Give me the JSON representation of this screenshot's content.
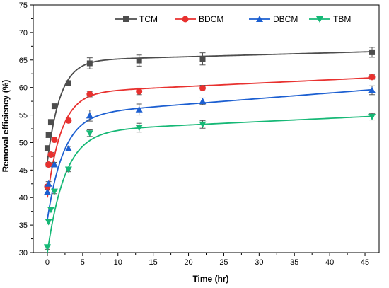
{
  "chart_data": {
    "type": "scatter",
    "xlabel": "Time (hr)",
    "ylabel": "Removal efficiency (%)",
    "xlim": [
      -2,
      47
    ],
    "ylim": [
      30,
      75
    ],
    "xticks": [
      "0",
      "5",
      "10",
      "15",
      "20",
      "25",
      "30",
      "35",
      "40",
      "45"
    ],
    "yticks": [
      "30",
      "35",
      "40",
      "45",
      "50",
      "55",
      "60",
      "65",
      "70",
      "75"
    ],
    "legend_position": "top",
    "grid": false,
    "series": [
      {
        "name": "TCM",
        "color": "#4d4d4d",
        "marker": "square",
        "points": [
          {
            "x": 0,
            "y": 49.0,
            "err": 0.4
          },
          {
            "x": 0.17,
            "y": 51.4,
            "err": 0.5
          },
          {
            "x": 0.5,
            "y": 53.7,
            "err": 0.5
          },
          {
            "x": 1,
            "y": 56.6,
            "err": 0.4
          },
          {
            "x": 3,
            "y": 60.8,
            "err": 0.4
          },
          {
            "x": 6,
            "y": 64.4,
            "err": 1.0
          },
          {
            "x": 13,
            "y": 64.9,
            "err": 1.0
          },
          {
            "x": 22,
            "y": 65.2,
            "err": 1.1
          },
          {
            "x": 46,
            "y": 66.4,
            "err": 0.9
          }
        ],
        "fit": {
          "asym": 64.9,
          "y0": 46.5,
          "tau": 1.8,
          "slope": 0.035
        }
      },
      {
        "name": "BDCM",
        "color": "#e8312f",
        "marker": "circle",
        "points": [
          {
            "x": 0,
            "y": 42.0,
            "err": 0.4
          },
          {
            "x": 0.17,
            "y": 46.0,
            "err": 0.4
          },
          {
            "x": 0.5,
            "y": 47.8,
            "err": 0.4
          },
          {
            "x": 1,
            "y": 50.5,
            "err": 0.4
          },
          {
            "x": 3,
            "y": 54.0,
            "err": 0.4
          },
          {
            "x": 6,
            "y": 58.8,
            "err": 0.5
          },
          {
            "x": 13,
            "y": 59.3,
            "err": 0.6
          },
          {
            "x": 22,
            "y": 59.9,
            "err": 0.5
          },
          {
            "x": 46,
            "y": 61.9,
            "err": 0.4
          }
        ],
        "fit": {
          "asym": 59.0,
          "y0": 40.0,
          "tau": 2.0,
          "slope": 0.06
        }
      },
      {
        "name": "DBCM",
        "color": "#1c5fd1",
        "marker": "triangle-up",
        "points": [
          {
            "x": 0,
            "y": 41.0,
            "err": 0.5
          },
          {
            "x": 0.17,
            "y": 42.5,
            "err": 0.4
          },
          {
            "x": 1,
            "y": 46.0,
            "err": 0.4
          },
          {
            "x": 3,
            "y": 48.9,
            "err": 0.4
          },
          {
            "x": 6,
            "y": 54.9,
            "err": 1.0
          },
          {
            "x": 13,
            "y": 56.0,
            "err": 1.0
          },
          {
            "x": 22,
            "y": 57.5,
            "err": 0.6
          },
          {
            "x": 46,
            "y": 59.5,
            "err": 0.8
          }
        ],
        "fit": {
          "asym": 55.0,
          "y0": 36.0,
          "tau": 2.3,
          "slope": 0.1
        }
      },
      {
        "name": "TBM",
        "color": "#16b876",
        "marker": "triangle-down",
        "points": [
          {
            "x": 0,
            "y": 31.0,
            "err": 0.4
          },
          {
            "x": 0.17,
            "y": 35.6,
            "err": 0.4
          },
          {
            "x": 0.5,
            "y": 37.8,
            "err": 0.4
          },
          {
            "x": 1,
            "y": 41.1,
            "err": 0.4
          },
          {
            "x": 3,
            "y": 45.1,
            "err": 0.4
          },
          {
            "x": 6,
            "y": 51.7,
            "err": 0.6
          },
          {
            "x": 13,
            "y": 52.7,
            "err": 0.8
          },
          {
            "x": 22,
            "y": 53.3,
            "err": 0.7
          },
          {
            "x": 46,
            "y": 54.7,
            "err": 0.6
          }
        ],
        "fit": {
          "asym": 52.0,
          "y0": 30.0,
          "tau": 2.5,
          "slope": 0.06
        }
      }
    ]
  }
}
